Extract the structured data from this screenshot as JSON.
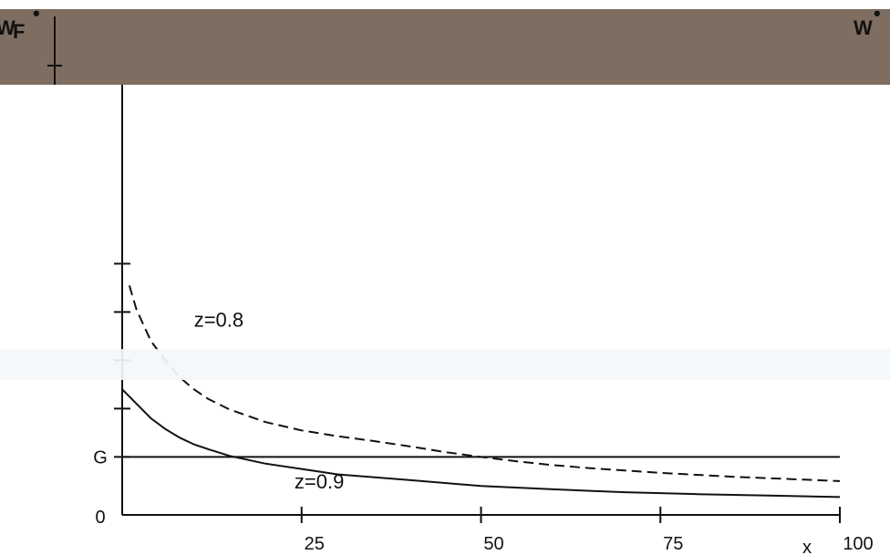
{
  "chart_data": {
    "type": "line",
    "title": "",
    "xlabel": "x",
    "ylabel": "",
    "xlim": [
      0,
      100
    ],
    "ylim": [
      0,
      10
    ],
    "x_ticks": [
      {
        "value": 0,
        "label": "0"
      },
      {
        "value": 25,
        "label": "25"
      },
      {
        "value": 50,
        "label": "50"
      },
      {
        "value": 75,
        "label": "75"
      },
      {
        "value": 100,
        "label": "100"
      }
    ],
    "y_ticks": [
      0,
      1.2,
      2.2,
      3.2,
      4.2,
      5.2
    ],
    "hline": {
      "label": "G",
      "value": 1.2
    },
    "series": [
      {
        "name": "z=0.8",
        "style": "dashed",
        "color": "#111111",
        "x": [
          1,
          2,
          4,
          6,
          8,
          10,
          12,
          15,
          20,
          25,
          30,
          35,
          40,
          45,
          50,
          55,
          60,
          65,
          70,
          75,
          80,
          85,
          90,
          95,
          100
        ],
        "y": [
          4.75,
          4.25,
          3.6,
          3.2,
          2.85,
          2.6,
          2.4,
          2.18,
          1.92,
          1.75,
          1.63,
          1.53,
          1.42,
          1.3,
          1.2,
          1.11,
          1.03,
          0.97,
          0.92,
          0.87,
          0.83,
          0.79,
          0.76,
          0.73,
          0.7
        ]
      },
      {
        "name": "z=0.9",
        "style": "solid",
        "color": "#111111",
        "x": [
          0,
          2,
          4,
          6,
          8,
          10,
          12,
          15,
          20,
          25,
          30,
          40,
          50,
          60,
          70,
          80,
          90,
          100
        ],
        "y": [
          2.6,
          2.3,
          2.0,
          1.78,
          1.6,
          1.46,
          1.36,
          1.22,
          1.06,
          0.95,
          0.84,
          0.72,
          0.6,
          0.53,
          0.47,
          0.43,
          0.4,
          0.37
        ]
      }
    ],
    "curve_labels": [
      {
        "text": "z=0.8",
        "x": 10,
        "y": 3.9
      },
      {
        "text": "z=0.9",
        "x": 24,
        "y": 0.55
      }
    ]
  },
  "header": {
    "left_label": "W",
    "left_subscript": "F",
    "left_superscript": "•",
    "right_label": "W",
    "right_superscript": "•",
    "band_color": "#7e6e61",
    "light_band_color": "#f4f7fa"
  }
}
